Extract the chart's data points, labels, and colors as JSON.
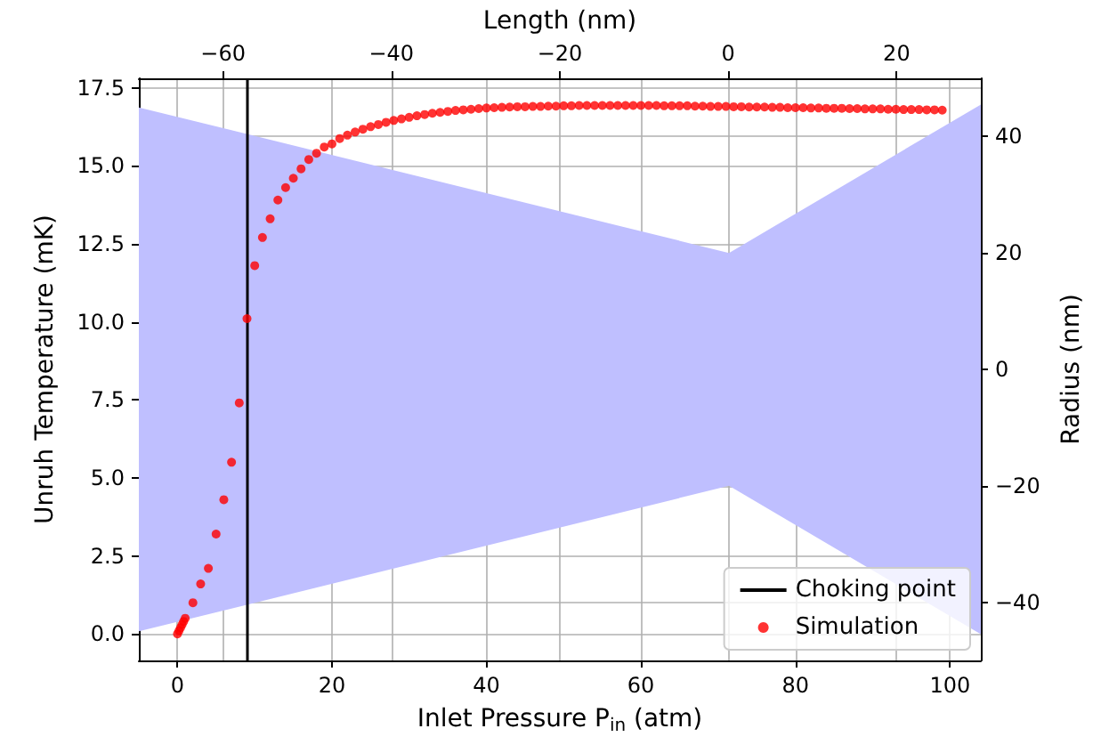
{
  "chart_data": {
    "type": "scatter",
    "xlabel": "Inlet Pressure P$_{in}$ (atm)",
    "ylabel": "Unruh Temperature (mK)",
    "x2label": "Length (nm)",
    "y2label": "Radius (nm)",
    "xlim": [
      -5,
      104
    ],
    "xticks": [
      0,
      20,
      40,
      60,
      80,
      100
    ],
    "ylim": [
      -0.85,
      17.8
    ],
    "yticks": [
      {
        "value": 0,
        "label": "0.0"
      },
      {
        "value": 2.5,
        "label": "2.5"
      },
      {
        "value": 5,
        "label": "5.0"
      },
      {
        "value": 7.5,
        "label": "7.5"
      },
      {
        "value": 10,
        "label": "10.0"
      },
      {
        "value": 12.5,
        "label": "12.5"
      },
      {
        "value": 15,
        "label": "15.0"
      },
      {
        "value": 17.5,
        "label": "17.5"
      }
    ],
    "x2lim": [
      -70,
      30
    ],
    "x2ticks": [
      {
        "value": -60,
        "label": "−60"
      },
      {
        "value": -40,
        "label": "−40"
      },
      {
        "value": -20,
        "label": "−20"
      },
      0,
      20
    ],
    "y2lim": [
      -50,
      50
    ],
    "y2ticks": [
      {
        "value": -40,
        "label": "−40"
      },
      {
        "value": -20,
        "label": "−20"
      },
      0,
      20,
      40
    ],
    "grid": true,
    "legend": "bottom right",
    "ref_lines": [
      {
        "axis": "x",
        "value": 9,
        "label": "Choking point",
        "color": "#000000",
        "line_style": "solid"
      }
    ],
    "series": [
      {
        "type": "area",
        "axis": "y2",
        "color": "#bfbfff",
        "x": [
          -5,
          71.4,
          104
        ],
        "values": [
          45,
          20,
          45.5
        ]
      },
      {
        "type": "area",
        "axis": "y2",
        "color": "#bfbfff",
        "x": [
          -5,
          71.4,
          104
        ],
        "values": [
          -45,
          -20,
          -45.5
        ]
      },
      {
        "name": "Simulation",
        "color": "#ff0000",
        "marker": "circle",
        "x": [
          0,
          0.2,
          0.4,
          0.6,
          0.8,
          1,
          2,
          3,
          4,
          5,
          6,
          7,
          8,
          9,
          10,
          11,
          12,
          13,
          14,
          15,
          16,
          17,
          18,
          19,
          20,
          21,
          22,
          23,
          24,
          25,
          26,
          27,
          28,
          29,
          30,
          31,
          32,
          33,
          34,
          35,
          36,
          37,
          38,
          39,
          40,
          41,
          42,
          43,
          44,
          45,
          46,
          47,
          48,
          49,
          50,
          51,
          52,
          53,
          54,
          55,
          56,
          57,
          58,
          59,
          60,
          61,
          62,
          63,
          64,
          65,
          66,
          67,
          68,
          69,
          70,
          71,
          72,
          73,
          74,
          75,
          76,
          77,
          78,
          79,
          80,
          81,
          82,
          83,
          84,
          85,
          86,
          87,
          88,
          89,
          90,
          91,
          92,
          93,
          94,
          95,
          96,
          97,
          98,
          99
        ],
        "values": [
          0,
          0.1,
          0.2,
          0.3,
          0.4,
          0.5,
          1,
          1.6,
          2.1,
          3.2,
          4.3,
          5.5,
          7.4,
          10.1,
          11.8,
          12.7,
          13.3,
          13.9,
          14.3,
          14.6,
          14.9,
          15.2,
          15.4,
          15.6,
          15.7,
          15.87,
          15.98,
          16.08,
          16.17,
          16.25,
          16.32,
          16.39,
          16.45,
          16.5,
          16.55,
          16.6,
          16.64,
          16.68,
          16.71,
          16.74,
          16.77,
          16.79,
          16.81,
          16.83,
          16.85,
          16.86,
          16.87,
          16.88,
          16.89,
          16.89,
          16.9,
          16.9,
          16.91,
          16.91,
          16.92,
          16.92,
          16.93,
          16.93,
          16.93,
          16.93,
          16.93,
          16.93,
          16.93,
          16.93,
          16.93,
          16.93,
          16.93,
          16.92,
          16.92,
          16.92,
          16.92,
          16.91,
          16.91,
          16.9,
          16.9,
          16.9,
          16.89,
          16.89,
          16.88,
          16.88,
          16.88,
          16.87,
          16.87,
          16.86,
          16.86,
          16.86,
          16.85,
          16.85,
          16.84,
          16.84,
          16.84,
          16.83,
          16.83,
          16.82,
          16.82,
          16.82,
          16.81,
          16.81,
          16.8,
          16.8,
          16.8,
          16.79,
          16.79,
          16.78
        ]
      }
    ]
  }
}
